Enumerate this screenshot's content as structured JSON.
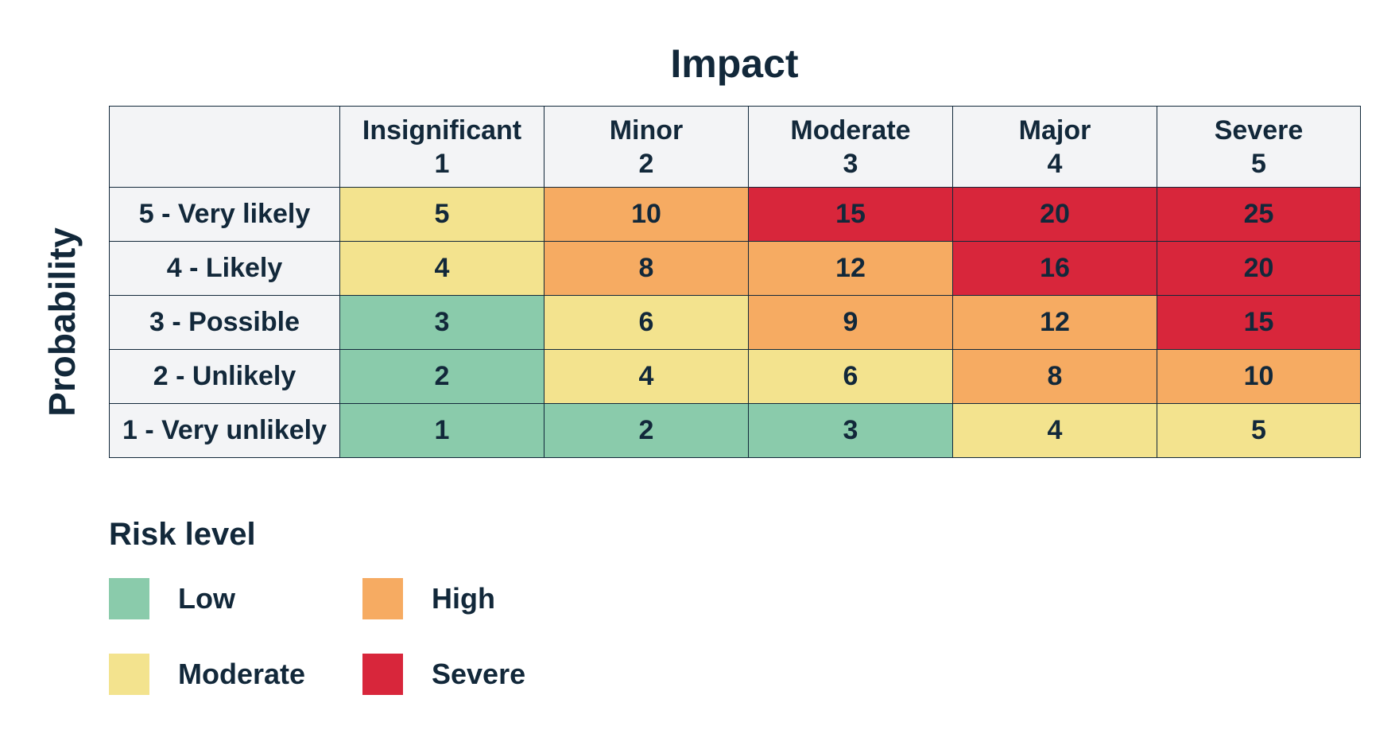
{
  "impact": {
    "title": "Impact",
    "columns": [
      {
        "name": "Insignificant",
        "value": "1"
      },
      {
        "name": "Minor",
        "value": "2"
      },
      {
        "name": "Moderate",
        "value": "3"
      },
      {
        "name": "Major",
        "value": "4"
      },
      {
        "name": "Severe",
        "value": "5"
      }
    ]
  },
  "probability": {
    "title": "Probability",
    "rows": [
      {
        "label": "5 - Very likely",
        "cells": [
          {
            "value": "5",
            "level": "moderate"
          },
          {
            "value": "10",
            "level": "high"
          },
          {
            "value": "15",
            "level": "severe"
          },
          {
            "value": "20",
            "level": "severe"
          },
          {
            "value": "25",
            "level": "severe"
          }
        ]
      },
      {
        "label": "4 - Likely",
        "cells": [
          {
            "value": "4",
            "level": "moderate"
          },
          {
            "value": "8",
            "level": "high"
          },
          {
            "value": "12",
            "level": "high"
          },
          {
            "value": "16",
            "level": "severe"
          },
          {
            "value": "20",
            "level": "severe"
          }
        ]
      },
      {
        "label": "3 - Possible",
        "cells": [
          {
            "value": "3",
            "level": "low"
          },
          {
            "value": "6",
            "level": "moderate"
          },
          {
            "value": "9",
            "level": "high"
          },
          {
            "value": "12",
            "level": "high"
          },
          {
            "value": "15",
            "level": "severe"
          }
        ]
      },
      {
        "label": "2 - Unlikely",
        "cells": [
          {
            "value": "2",
            "level": "low"
          },
          {
            "value": "4",
            "level": "moderate"
          },
          {
            "value": "6",
            "level": "moderate"
          },
          {
            "value": "8",
            "level": "high"
          },
          {
            "value": "10",
            "level": "high"
          }
        ]
      },
      {
        "label": "1 - Very unlikely",
        "cells": [
          {
            "value": "1",
            "level": "low"
          },
          {
            "value": "2",
            "level": "low"
          },
          {
            "value": "3",
            "level": "low"
          },
          {
            "value": "4",
            "level": "moderate"
          },
          {
            "value": "5",
            "level": "moderate"
          }
        ]
      }
    ]
  },
  "legend": {
    "title": "Risk level",
    "items": [
      {
        "label": "Low",
        "level": "low",
        "color": "#8acbab"
      },
      {
        "label": "High",
        "level": "high",
        "color": "#f6ab62"
      },
      {
        "label": "Moderate",
        "level": "moderate",
        "color": "#f3e38e"
      },
      {
        "label": "Severe",
        "level": "severe",
        "color": "#d8263b"
      }
    ]
  },
  "colors": {
    "text": "#12283a",
    "header_background": "#f3f4f6",
    "low": "#8acbab",
    "moderate": "#f3e38e",
    "high": "#f6ab62",
    "severe": "#d8263b"
  }
}
